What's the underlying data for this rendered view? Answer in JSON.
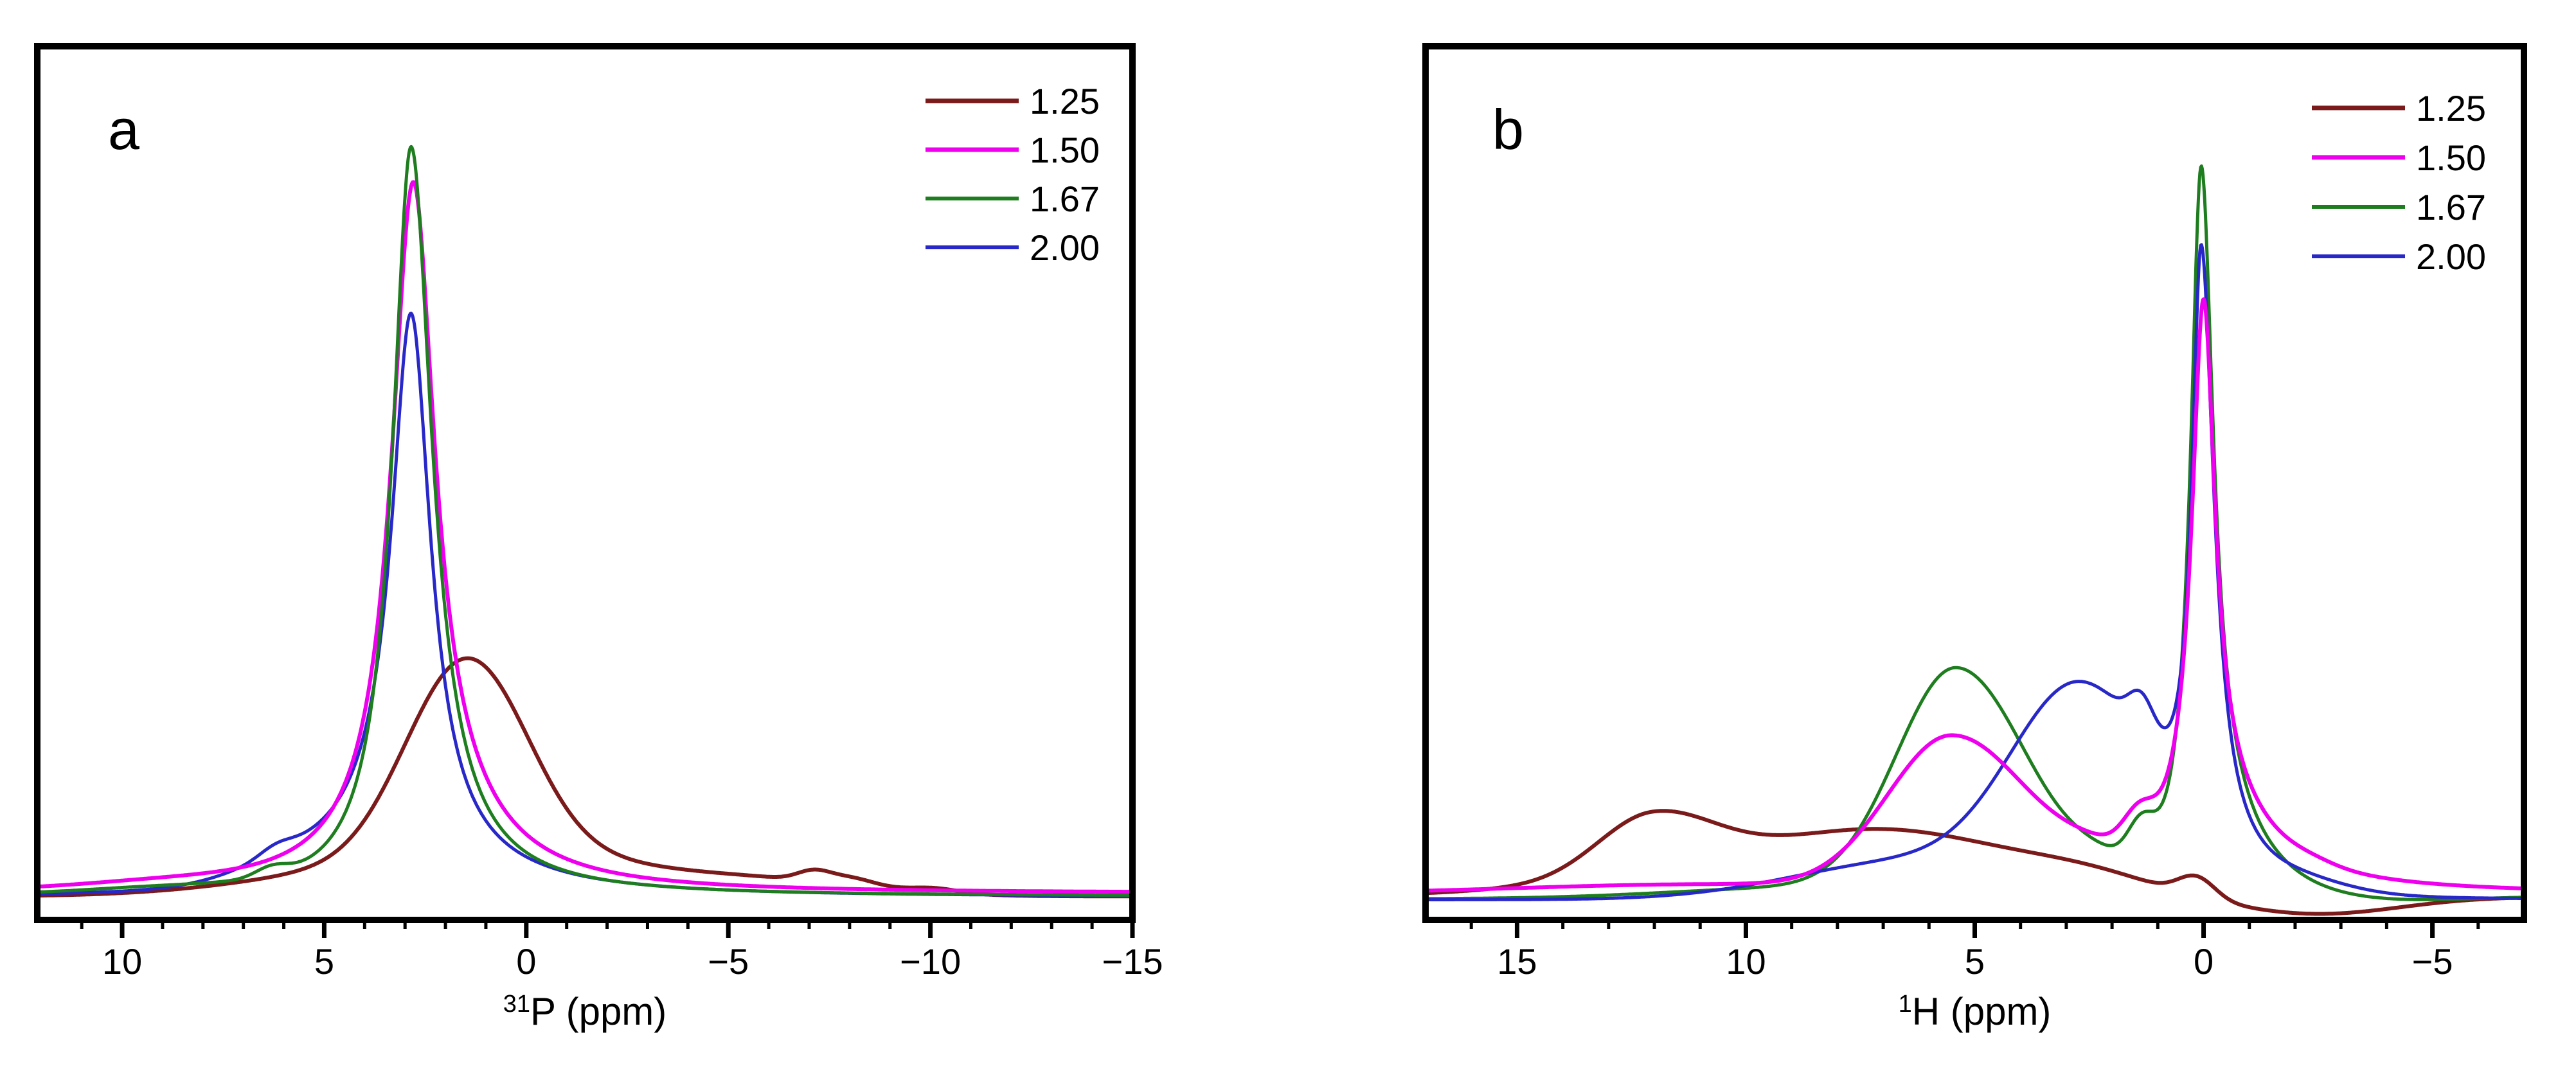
{
  "chart_data": {
    "type": "line",
    "description": "Two-panel solid-state NMR spectra overlay; four traces per panel labeled by ratio",
    "panels": [
      {
        "panel_label": "a",
        "x_axis": {
          "label_superscript": "31",
          "label_text": "P (ppm)",
          "max": 12.1,
          "min": -15,
          "major_ticks": [
            10,
            5,
            0,
            -5,
            -10,
            -15
          ],
          "minor_tick_step": 1,
          "direction": "reversed"
        },
        "y_axis": {
          "label": "",
          "tick_labels_visible": false
        },
        "legend_position": "top-right",
        "series": [
          {
            "label": "1.25",
            "color": "#7a1a1a",
            "width": 6,
            "baseline": 0.004,
            "peaks": [
              {
                "type": "g",
                "c": 2.1,
                "w": 1.3,
                "a": 0.145
              },
              {
                "type": "g",
                "c": 0.85,
                "w": 1.3,
                "a": 0.145
              },
              {
                "type": "g",
                "c": 2.5,
                "w": 3.5,
                "a": 0.045
              },
              {
                "type": "g",
                "c": -1.0,
                "w": 2.5,
                "a": 0.026
              },
              {
                "type": "g",
                "c": -6.0,
                "w": 2.5,
                "a": 0.02
              },
              {
                "type": "g",
                "c": -7.1,
                "w": 0.4,
                "a": 0.012
              },
              {
                "type": "g",
                "c": -8.0,
                "w": 0.6,
                "a": 0.01
              },
              {
                "type": "g",
                "c": -10.1,
                "w": 0.6,
                "a": 0.006
              }
            ],
            "peak_summary": "broad flat-topped resonance ~0.9-2.1 ppm, rel. height 0.30; weak humps at -7.1, -8.0, -10.1 ppm"
          },
          {
            "label": "1.50",
            "color": "#ee00ee",
            "width": 6,
            "baseline": 0.008,
            "peaks": [
              {
                "type": "l",
                "c": 2.8,
                "w": 0.65,
                "a": 0.88
              },
              {
                "type": "l",
                "c": 2.2,
                "w": [
                  2.0,
                  2.0
                ],
                "a": 0.075
              },
              {
                "type": "g",
                "c": 9.0,
                "w": 2.0,
                "a": 0.006
              }
            ],
            "peak_summary": "sharp resonance at 2.8 ppm, rel. height 0.96, broadened right tail"
          },
          {
            "label": "1.67",
            "color": "#1e7d1e",
            "width": 5,
            "baseline": 0.004,
            "peaks": [
              {
                "type": "l",
                "c": 2.85,
                "w": [
                  0.62,
                  0.55
                ],
                "a": 0.93
              },
              {
                "type": "l",
                "c": 2.85,
                "w": [
                  1.6,
                  0.9
                ],
                "a": 0.07
              },
              {
                "type": "g",
                "c": 6.3,
                "w": 0.4,
                "a": 0.012
              },
              {
                "type": "g",
                "c": 9.0,
                "w": 2.0,
                "a": 0.006
              }
            ],
            "peak_summary": "tallest sharp resonance at 2.85 ppm, rel. height 1.00"
          },
          {
            "label": "2.00",
            "color": "#2828c8",
            "width": 5,
            "baseline": 0.003,
            "peaks": [
              {
                "type": "l",
                "c": 2.85,
                "w": 0.58,
                "a": 0.7
              },
              {
                "type": "l",
                "c": 3.3,
                "w": [
                  2.4,
                  1.4
                ],
                "a": 0.075
              },
              {
                "type": "g",
                "c": 5.5,
                "w": 1.5,
                "a": 0.03
              },
              {
                "type": "g",
                "c": 6.2,
                "w": 0.4,
                "a": 0.01
              }
            ],
            "peak_summary": "sharp resonance at 2.85 ppm, rel. height 0.78, broadened left flank"
          }
        ]
      },
      {
        "panel_label": "b",
        "x_axis": {
          "label_superscript": "1",
          "label_text": "H (ppm)",
          "max": 17,
          "min": -7,
          "major_ticks": [
            15,
            10,
            5,
            0,
            -5
          ],
          "minor_tick_step": 1,
          "direction": "reversed"
        },
        "y_axis": {
          "label": "",
          "tick_labels_visible": false
        },
        "legend_position": "top-right",
        "series": [
          {
            "label": "1.25",
            "color": "#7a1a1a",
            "width": 6,
            "baseline": 0.006,
            "peaks": [
              {
                "type": "g",
                "c": 12.05,
                "w": [
                  1.4,
                  1.2
                ],
                "a": 0.085
              },
              {
                "type": "g",
                "c": 12.0,
                "w": 3.0,
                "a": 0.02
              },
              {
                "type": "g",
                "c": 8.3,
                "w": 2.0,
                "a": 0.055
              },
              {
                "type": "g",
                "c": 5.5,
                "w": 2.0,
                "a": 0.055
              },
              {
                "type": "g",
                "c": 2.5,
                "w": 1.5,
                "a": 0.025
              },
              {
                "type": "g",
                "c": 0.15,
                "w": 0.4,
                "a": 0.027
              },
              {
                "type": "g",
                "c": -2.5,
                "w": 1.8,
                "a": -0.023
              }
            ],
            "peak_summary": "broad peak at ~12 ppm (rel. 0.11), broad hump ~7-8 ppm, small peak at 0.15 ppm, dips below baseline near -2.5 ppm"
          },
          {
            "label": "1.50",
            "color": "#ee00ee",
            "width": 6,
            "baseline": 0.01,
            "peaks": [
              {
                "type": "l",
                "c": 0.0,
                "w": 0.3,
                "a": 0.66
              },
              {
                "type": "l",
                "c": 0.0,
                "w": [
                  1.5,
                  0.7
                ],
                "a": 0.14
              },
              {
                "type": "g",
                "c": 5.5,
                "w": [
                  1.7,
                  1.4
                ],
                "a": 0.205
              },
              {
                "type": "g",
                "c": 2.3,
                "w": 0.8,
                "a": 0.02
              },
              {
                "type": "g",
                "c": 1.4,
                "w": 0.35,
                "a": 0.045
              },
              {
                "type": "g",
                "c": 11.0,
                "w": 4.0,
                "a": 0.012
              },
              {
                "type": "g",
                "c": -2.4,
                "w": 0.5,
                "a": 0.004
              }
            ],
            "peak_summary": "sharp peak at 0 ppm (rel. 0.80) plus broad water peak at ~5.5 ppm (rel. 0.21)"
          },
          {
            "label": "1.67",
            "color": "#1e7d1e",
            "width": 5,
            "baseline": 0.003,
            "peaks": [
              {
                "type": "l",
                "c": 0.05,
                "w": [
                  0.32,
                  0.28
                ],
                "a": 0.87
              },
              {
                "type": "l",
                "c": 0.05,
                "w": [
                  1.4,
                  0.45
                ],
                "a": 0.13
              },
              {
                "type": "g",
                "c": 5.4,
                "w": [
                  1.55,
                  1.3
                ],
                "a": 0.3
              },
              {
                "type": "g",
                "c": 2.2,
                "w": 0.7,
                "a": 0.02
              },
              {
                "type": "g",
                "c": 1.35,
                "w": 0.3,
                "a": 0.05
              },
              {
                "type": "g",
                "c": 8.5,
                "w": 3.0,
                "a": 0.015
              },
              {
                "type": "g",
                "c": -2.5,
                "w": 2.5,
                "a": -0.022
              }
            ],
            "peak_summary": "tallest sharp peak at ~0 ppm (rel. 1.00) plus broad peak at ~5.4 ppm (rel. 0.30)"
          },
          {
            "label": "2.00",
            "color": "#2828c8",
            "width": 5,
            "baseline": 0.002,
            "peaks": [
              {
                "type": "l",
                "c": 0.05,
                "w": [
                  0.34,
                  0.25
                ],
                "a": 0.8
              },
              {
                "type": "g",
                "c": 2.7,
                "w": [
                  1.6,
                  1.5
                ],
                "a": 0.27
              },
              {
                "type": "g",
                "c": 1.35,
                "w": 0.28,
                "a": 0.05
              },
              {
                "type": "g",
                "c": 6.5,
                "w": 2.5,
                "a": 0.05
              },
              {
                "type": "g",
                "c": -1.8,
                "w": [
                  1.2,
                  2.0
                ],
                "a": 0.02
              }
            ],
            "peak_summary": "sharp peak at ~0 ppm (rel. 0.90) with pronounced broad shoulder ~2.5-3 ppm and long right tail"
          }
        ]
      }
    ]
  }
}
